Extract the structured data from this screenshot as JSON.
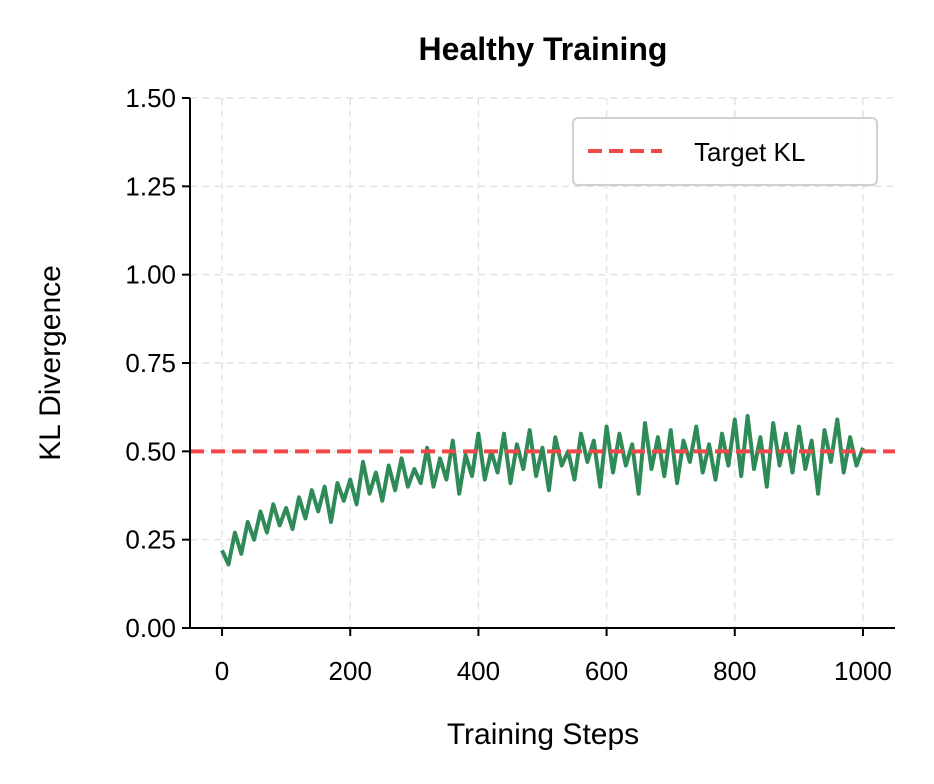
{
  "chart_data": {
    "type": "line",
    "title": "Healthy Training",
    "xlabel": "Training Steps",
    "ylabel": "KL Divergence",
    "xlim": [
      -50,
      1050
    ],
    "ylim": [
      0,
      1.5
    ],
    "xticks": [
      "0",
      "200",
      "400",
      "600",
      "800",
      "1000"
    ],
    "yticks": [
      "0.00",
      "0.25",
      "0.50",
      "0.75",
      "1.00",
      "1.25",
      "1.50"
    ],
    "grid": true,
    "legend_position": "top-right",
    "series": [
      {
        "color": "#2e8b57",
        "x": [
          0,
          10,
          20,
          30,
          40,
          50,
          60,
          70,
          80,
          90,
          100,
          110,
          120,
          130,
          140,
          150,
          160,
          170,
          180,
          190,
          200,
          210,
          220,
          230,
          240,
          250,
          260,
          270,
          280,
          290,
          300,
          310,
          320,
          330,
          340,
          350,
          360,
          370,
          380,
          390,
          400,
          410,
          420,
          430,
          440,
          450,
          460,
          470,
          480,
          490,
          500,
          510,
          520,
          530,
          540,
          550,
          560,
          570,
          580,
          590,
          600,
          610,
          620,
          630,
          640,
          650,
          660,
          670,
          680,
          690,
          700,
          710,
          720,
          730,
          740,
          750,
          760,
          770,
          780,
          790,
          800,
          810,
          820,
          830,
          840,
          850,
          860,
          870,
          880,
          890,
          900,
          910,
          920,
          930,
          940,
          950,
          960,
          970,
          980,
          990,
          1000
        ],
        "y": [
          0.22,
          0.18,
          0.27,
          0.21,
          0.3,
          0.25,
          0.33,
          0.27,
          0.35,
          0.29,
          0.34,
          0.28,
          0.37,
          0.31,
          0.39,
          0.33,
          0.4,
          0.3,
          0.41,
          0.36,
          0.42,
          0.35,
          0.47,
          0.38,
          0.44,
          0.36,
          0.46,
          0.39,
          0.48,
          0.4,
          0.45,
          0.41,
          0.51,
          0.4,
          0.48,
          0.42,
          0.53,
          0.38,
          0.49,
          0.43,
          0.55,
          0.42,
          0.5,
          0.44,
          0.55,
          0.41,
          0.52,
          0.45,
          0.56,
          0.43,
          0.51,
          0.39,
          0.54,
          0.46,
          0.5,
          0.42,
          0.55,
          0.47,
          0.53,
          0.4,
          0.57,
          0.44,
          0.55,
          0.46,
          0.52,
          0.38,
          0.58,
          0.45,
          0.54,
          0.43,
          0.56,
          0.41,
          0.53,
          0.47,
          0.57,
          0.44,
          0.52,
          0.42,
          0.55,
          0.46,
          0.59,
          0.43,
          0.6,
          0.45,
          0.54,
          0.4,
          0.58,
          0.46,
          0.55,
          0.44,
          0.57,
          0.45,
          0.53,
          0.38,
          0.56,
          0.47,
          0.59,
          0.44,
          0.54,
          0.46,
          0.51
        ]
      }
    ],
    "reference_line": {
      "name": "Target KL",
      "y": 0.5,
      "color": "#f04848",
      "style": "dashed"
    }
  }
}
